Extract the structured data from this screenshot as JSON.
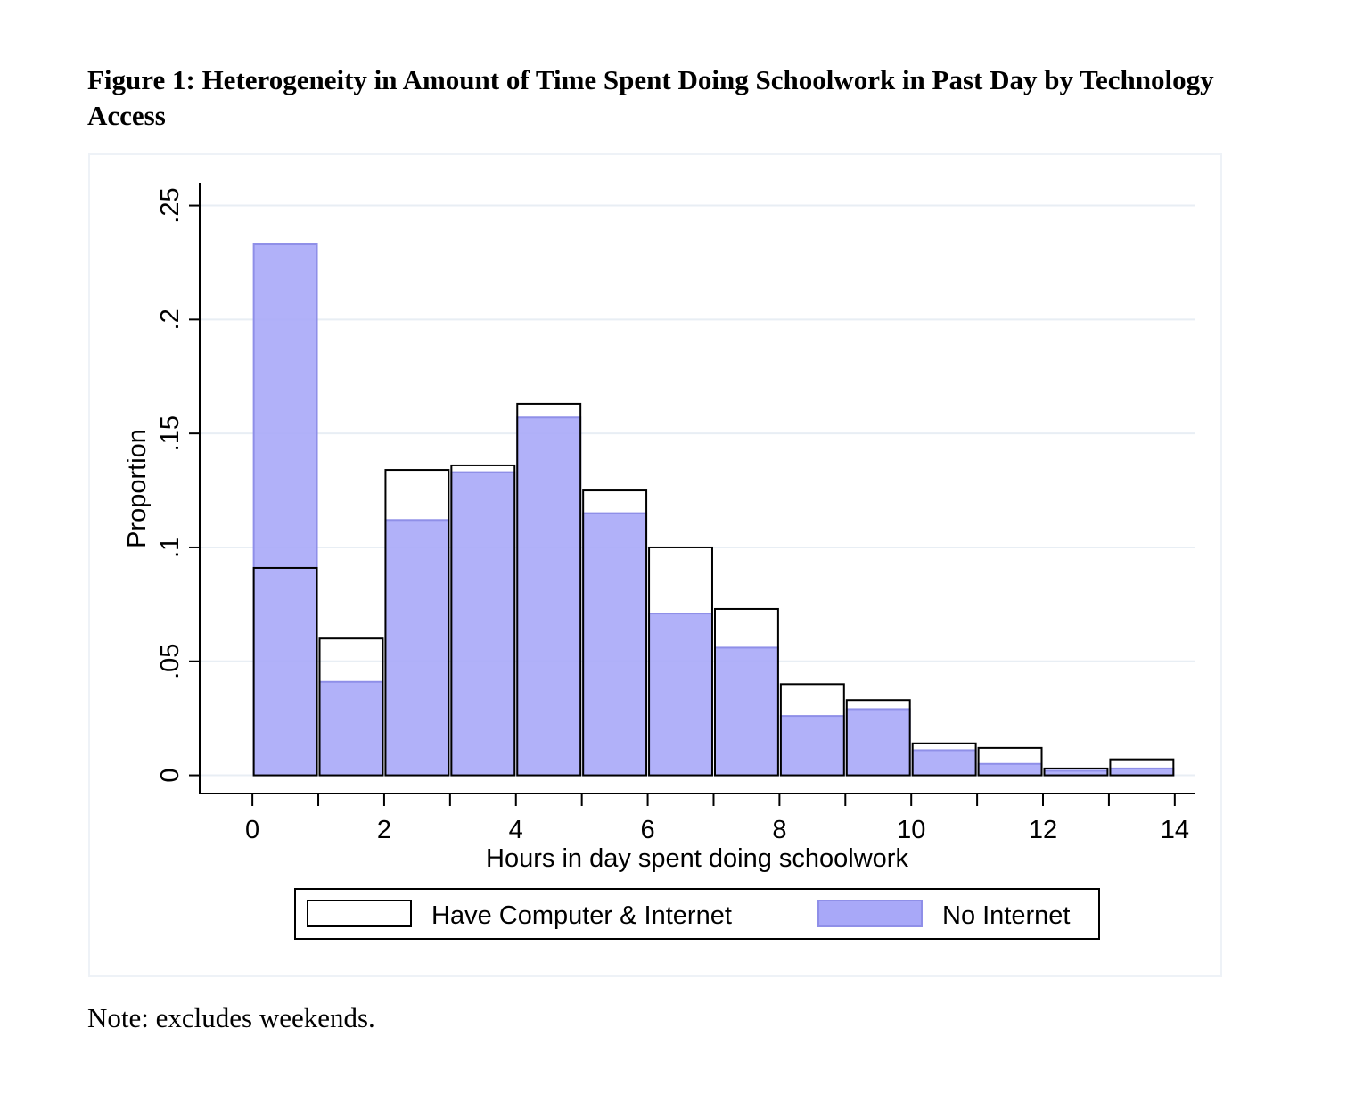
{
  "figure": {
    "title": "Figure 1: Heterogeneity in Amount of Time Spent Doing Schoolwork in Past Day by Technology Access",
    "note": "Note: excludes weekends."
  },
  "chart_data": {
    "type": "bar",
    "xlabel": "Hours in day spent doing schoolwork",
    "ylabel": "Proportion",
    "xlim": [
      -0.8,
      14.3
    ],
    "ylim": [
      -0.008,
      0.26
    ],
    "x_ticks": [
      0,
      2,
      4,
      6,
      8,
      10,
      12,
      14
    ],
    "x_tick_labels": [
      "0",
      "2",
      "4",
      "6",
      "8",
      "10",
      "12",
      "14"
    ],
    "x_minor_ticks": [
      1,
      3,
      5,
      7,
      9,
      11,
      13
    ],
    "y_ticks": [
      0,
      0.05,
      0.1,
      0.15,
      0.2,
      0.25
    ],
    "y_tick_labels": [
      "0",
      ".05",
      ".1",
      ".15",
      ".2",
      ".25"
    ],
    "grid": true,
    "legend_position": "bottom",
    "bin_edges": [
      0,
      1,
      2,
      3,
      4,
      5,
      6,
      7,
      8,
      9,
      10,
      11,
      12,
      13,
      14
    ],
    "series": [
      {
        "name": "Have Computer & Internet",
        "style": "outline",
        "color": "#000000",
        "values": [
          0.091,
          0.06,
          0.134,
          0.136,
          0.163,
          0.125,
          0.1,
          0.073,
          0.04,
          0.033,
          0.014,
          0.012,
          0.003,
          0.007
        ]
      },
      {
        "name": "No Internet",
        "style": "filled",
        "color": "#a8a8f8",
        "values": [
          0.233,
          0.041,
          0.112,
          0.133,
          0.157,
          0.115,
          0.071,
          0.056,
          0.026,
          0.029,
          0.011,
          0.005,
          0.002,
          0.003
        ]
      }
    ]
  }
}
